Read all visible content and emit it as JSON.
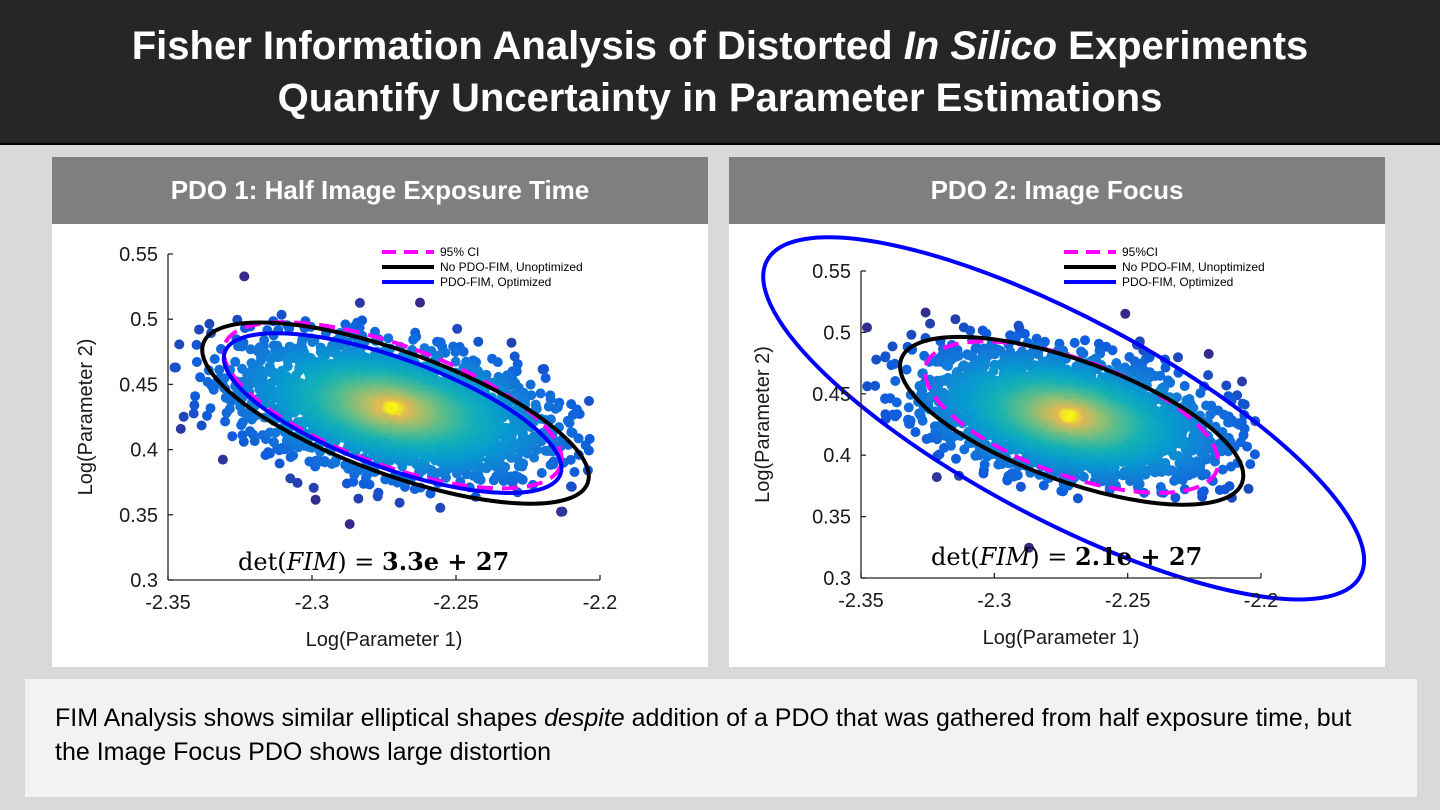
{
  "header": {
    "title_line1_a": "Fisher Information Analysis of Distorted ",
    "title_line1_em": "In Silico",
    "title_line1_b": " Experiments",
    "title_line2": "Quantify Uncertainty in Parameter Estimations"
  },
  "panels": [
    {
      "header": "PDO 1: Half Image Exposure Time",
      "det_prefix": "det(",
      "det_var": "FIM",
      "det_mid": ") = ",
      "det_value": "3.3e + 27"
    },
    {
      "header": "PDO 2: Image Focus",
      "det_prefix": "det(",
      "det_var": "FIM",
      "det_mid": ") = ",
      "det_value": "2.1e + 27"
    }
  ],
  "caption": {
    "text_a": "FIM Analysis shows similar elliptical shapes ",
    "text_em": "despite",
    "text_b": " addition of a PDO that was gathered from half exposure time, but the Image Focus PDO shows large distortion"
  },
  "colors": {
    "ci": "#ff00ff",
    "unoptimized": "#000000",
    "optimized": "#0000ff",
    "header_bg": "#262626",
    "panel_header_bg": "#7f7f7f"
  },
  "chart_data": [
    {
      "type": "scatter",
      "xlabel": "Log(Parameter 1)",
      "ylabel": "Log(Parameter 2)",
      "xlim": [
        -2.35,
        -2.2
      ],
      "ylim": [
        0.3,
        0.55
      ],
      "xticks": [
        "-2.35",
        "-2.3",
        "-2.25",
        "-2.2"
      ],
      "yticks": [
        "0.3",
        "0.35",
        "0.4",
        "0.45",
        "0.5",
        "0.55"
      ],
      "grid": false,
      "legend_position": "top-right",
      "series": [
        {
          "name": "95% CI",
          "style": "dashed",
          "color": "#ff00ff",
          "ellipse": {
            "cx": -2.272,
            "cy": 0.434,
            "rx": 0.062,
            "ry": 0.046,
            "angle_deg": -20
          }
        },
        {
          "name": "No PDO-FIM, Unoptimized",
          "style": "solid",
          "color": "#000000",
          "ellipse": {
            "cx": -2.271,
            "cy": 0.428,
            "rx": 0.071,
            "ry": 0.047,
            "angle_deg": -20
          }
        },
        {
          "name": "PDO-FIM, Optimized",
          "style": "solid",
          "color": "#0000ff",
          "ellipse": {
            "cx": -2.272,
            "cy": 0.428,
            "rx": 0.062,
            "ry": 0.042,
            "angle_deg": -20
          }
        }
      ],
      "scatter_cloud": {
        "center": [
          -2.272,
          0.432
        ],
        "sx": 0.026,
        "sy": 0.025,
        "rho": -0.35,
        "n": 2600
      }
    },
    {
      "type": "scatter",
      "xlabel": "Log(Parameter 1)",
      "ylabel": "Log(Parameter 2)",
      "xlim": [
        -2.35,
        -2.2
      ],
      "ylim": [
        0.3,
        0.55
      ],
      "xticks": [
        "-2.35",
        "-2.3",
        "-2.25",
        "-2.2"
      ],
      "yticks": [
        "0.3",
        "0.35",
        "0.4",
        "0.45",
        "0.5",
        "0.55"
      ],
      "grid": false,
      "legend_position": "top-right",
      "series": [
        {
          "name": "95%CI",
          "style": "dashed",
          "color": "#ff00ff",
          "ellipse": {
            "cx": -2.271,
            "cy": 0.431,
            "rx": 0.058,
            "ry": 0.047,
            "angle_deg": -20
          }
        },
        {
          "name": "No PDO-FIM, Unoptimized",
          "style": "solid",
          "color": "#000000",
          "ellipse": {
            "cx": -2.271,
            "cy": 0.428,
            "rx": 0.068,
            "ry": 0.049,
            "angle_deg": -20
          }
        },
        {
          "name": "PDO-FIM, Optimized",
          "style": "solid",
          "color": "#0000ff",
          "ellipse": {
            "cx": -2.274,
            "cy": 0.43,
            "rx": 0.126,
            "ry": 0.082,
            "angle_deg": -28
          }
        }
      ],
      "scatter_cloud": {
        "center": [
          -2.272,
          0.432
        ],
        "sx": 0.026,
        "sy": 0.025,
        "rho": -0.35,
        "n": 2600
      }
    }
  ]
}
